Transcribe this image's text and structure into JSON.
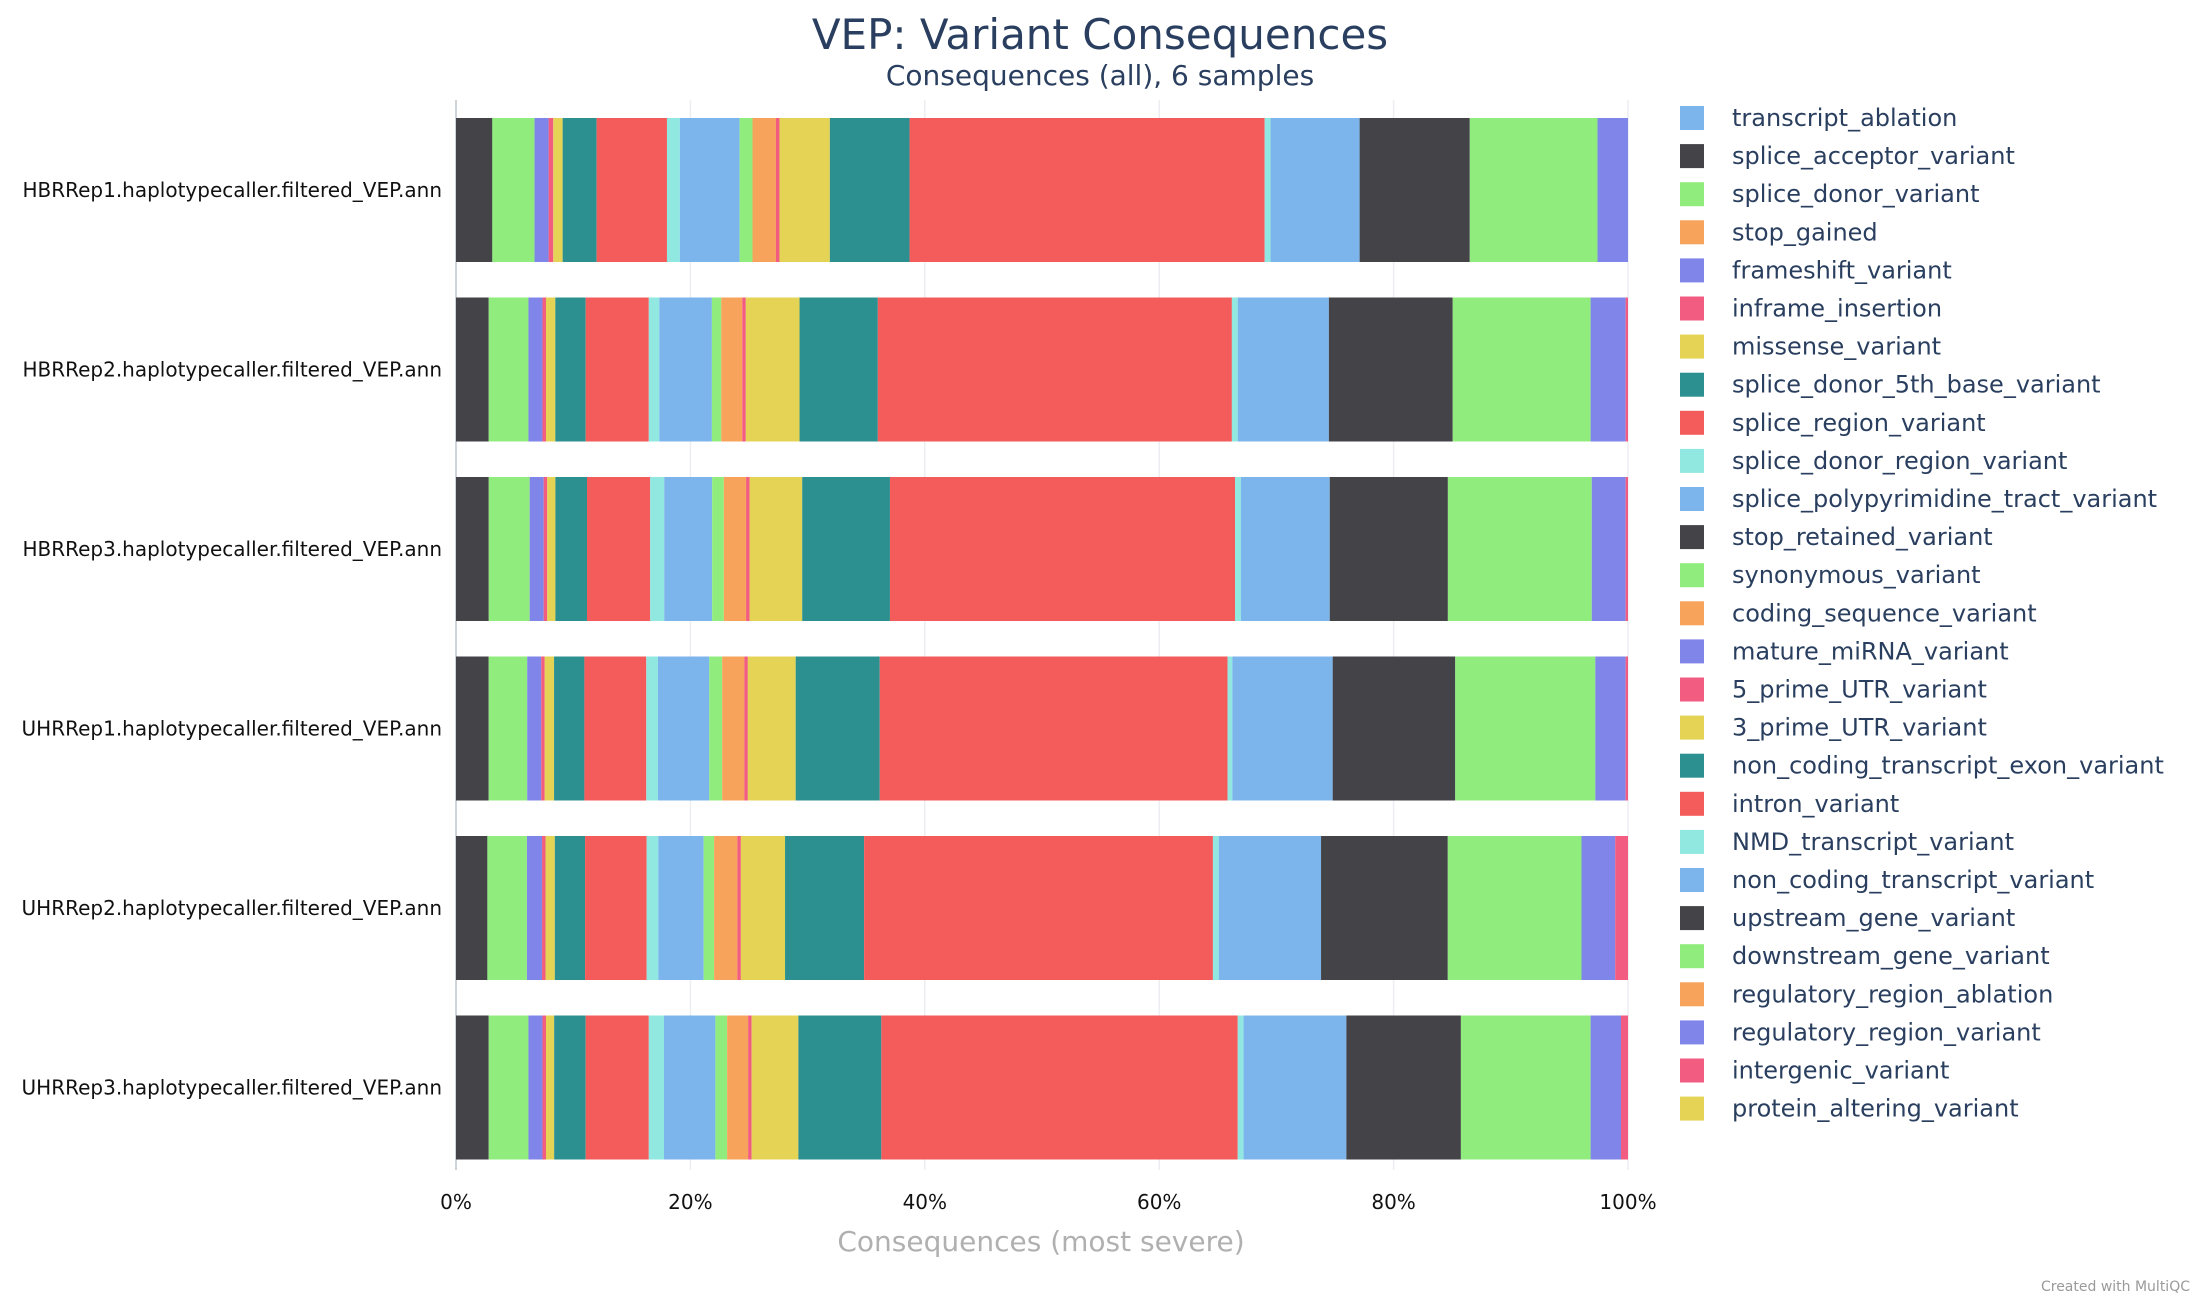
{
  "chart_data": {
    "type": "bar",
    "orientation": "horizontal",
    "stacked": "percent",
    "title": "VEP: Variant Consequences",
    "subtitle": "Consequences (all), 6 samples",
    "xlabel": "Consequences (most severe)",
    "xlim": [
      0,
      100
    ],
    "xticks": [
      "0%",
      "20%",
      "40%",
      "60%",
      "80%",
      "100%"
    ],
    "grid": true,
    "legend_position": "right",
    "categories": [
      "HBRRep1.haplotypecaller.filtered_VEP.ann",
      "HBRRep2.haplotypecaller.filtered_VEP.ann",
      "HBRRep3.haplotypecaller.filtered_VEP.ann",
      "UHRRep1.haplotypecaller.filtered_VEP.ann",
      "UHRRep2.haplotypecaller.filtered_VEP.ann",
      "UHRRep3.haplotypecaller.filtered_VEP.ann"
    ],
    "series": [
      {
        "name": "transcript_ablation",
        "color": "#7cb5ec",
        "values": [
          0,
          0,
          0,
          0,
          0,
          0
        ]
      },
      {
        "name": "splice_acceptor_variant",
        "color": "#434348",
        "values": [
          3.1,
          2.8,
          2.8,
          2.8,
          2.7,
          2.8
        ]
      },
      {
        "name": "splice_donor_variant",
        "color": "#90ed7d",
        "values": [
          3.6,
          3.4,
          3.5,
          3.3,
          3.4,
          3.4
        ]
      },
      {
        "name": "stop_gained",
        "color": "#f7a35c",
        "values": [
          0,
          0,
          0,
          0,
          0,
          0
        ]
      },
      {
        "name": "frameshift_variant",
        "color": "#8085e9",
        "values": [
          1.2,
          1.2,
          1.2,
          1.2,
          1.3,
          1.2
        ]
      },
      {
        "name": "inframe_insertion",
        "color": "#f15c80",
        "values": [
          0.4,
          0.3,
          0.3,
          0.3,
          0.3,
          0.3
        ]
      },
      {
        "name": "missense_variant",
        "color": "#e4d354",
        "values": [
          0.8,
          0.8,
          0.7,
          0.8,
          0.8,
          0.7
        ]
      },
      {
        "name": "splice_donor_5th_base_variant",
        "color": "#2b908f",
        "values": [
          2.9,
          2.6,
          2.7,
          2.6,
          2.6,
          2.7
        ]
      },
      {
        "name": "splice_region_variant",
        "color": "#f45b5b",
        "values": [
          6.0,
          5.4,
          5.4,
          5.3,
          5.3,
          5.4
        ]
      },
      {
        "name": "splice_donor_region_variant",
        "color": "#91e8e1",
        "values": [
          1.1,
          0.9,
          1.2,
          1.0,
          1.0,
          1.3
        ]
      },
      {
        "name": "splice_polypyrimidine_tract_variant",
        "color": "#7cb5ec",
        "values": [
          5.1,
          4.5,
          4.1,
          4.4,
          3.9,
          4.4
        ]
      },
      {
        "name": "stop_retained_variant",
        "color": "#434348",
        "values": [
          0,
          0,
          0,
          0,
          0,
          0
        ]
      },
      {
        "name": "synonymous_variant",
        "color": "#90ed7d",
        "values": [
          1.1,
          0.8,
          1.0,
          1.1,
          0.9,
          1.0
        ]
      },
      {
        "name": "coding_sequence_variant",
        "color": "#f7a35c",
        "values": [
          2.0,
          1.8,
          1.9,
          1.9,
          2.0,
          1.8
        ]
      },
      {
        "name": "mature_miRNA_variant",
        "color": "#8085e9",
        "values": [
          0,
          0,
          0,
          0,
          0,
          0
        ]
      },
      {
        "name": "5_prime_UTR_variant",
        "color": "#f15c80",
        "values": [
          0.3,
          0.3,
          0.3,
          0.3,
          0.3,
          0.3
        ]
      },
      {
        "name": "3_prime_UTR_variant",
        "color": "#e4d354",
        "values": [
          4.3,
          4.6,
          4.5,
          4.1,
          3.8,
          4.0
        ]
      },
      {
        "name": "non_coding_transcript_exon_variant",
        "color": "#2b908f",
        "values": [
          6.8,
          6.7,
          7.5,
          7.2,
          6.8,
          7.1
        ]
      },
      {
        "name": "intron_variant",
        "color": "#f45b5b",
        "values": [
          30.3,
          30.3,
          29.5,
          29.8,
          30.0,
          30.5
        ]
      },
      {
        "name": "NMD_transcript_variant",
        "color": "#91e8e1",
        "values": [
          0.5,
          0.5,
          0.5,
          0.4,
          0.5,
          0.5
        ]
      },
      {
        "name": "non_coding_transcript_variant",
        "color": "#7cb5ec",
        "values": [
          7.6,
          7.8,
          7.6,
          8.6,
          8.8,
          8.8
        ]
      },
      {
        "name": "upstream_gene_variant",
        "color": "#434348",
        "values": [
          9.4,
          10.6,
          10.1,
          10.5,
          10.9,
          9.8
        ]
      },
      {
        "name": "downstream_gene_variant",
        "color": "#90ed7d",
        "values": [
          10.9,
          11.8,
          12.3,
          12.0,
          11.5,
          11.1
        ]
      },
      {
        "name": "regulatory_region_ablation",
        "color": "#f7a35c",
        "values": [
          0,
          0,
          0,
          0,
          0,
          0
        ]
      },
      {
        "name": "regulatory_region_variant",
        "color": "#8085e9",
        "values": [
          2.6,
          3.0,
          2.9,
          2.6,
          2.9,
          2.6
        ]
      },
      {
        "name": "intergenic_variant",
        "color": "#f15c80",
        "values": [
          0,
          0.2,
          0.2,
          0.2,
          1.1,
          0.6
        ]
      },
      {
        "name": "protein_altering_variant",
        "color": "#e4d354",
        "values": [
          0,
          0,
          0,
          0,
          0,
          0
        ]
      }
    ],
    "credit": "Created with MultiQC"
  }
}
